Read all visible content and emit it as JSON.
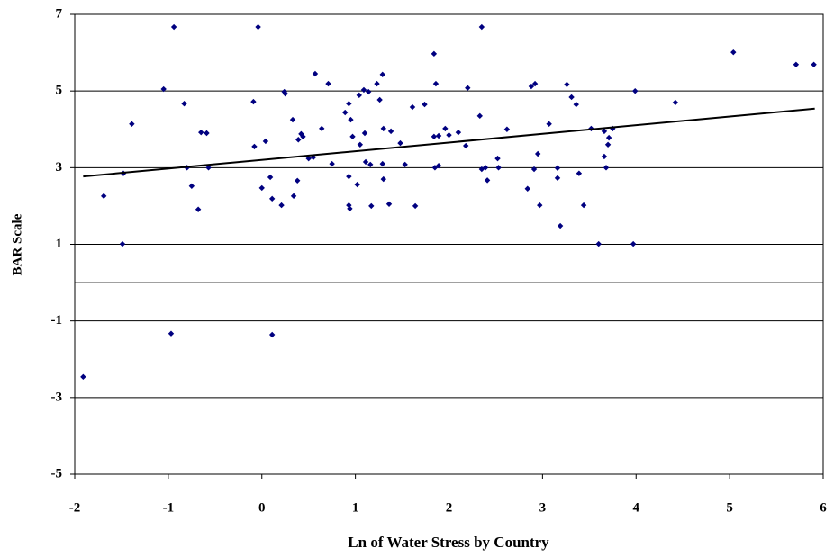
{
  "chart_data": {
    "type": "scatter",
    "xlabel": "Ln of Water Stress by Country",
    "ylabel": "BAR Scale",
    "color": "#000080",
    "grid": true,
    "xlim": [
      -2,
      6
    ],
    "xticks": [
      -2,
      -1,
      0,
      1,
      2,
      3,
      4,
      5,
      6
    ],
    "ylim": [
      -5,
      7
    ],
    "yticks": [
      -5,
      -3,
      -1,
      1,
      3,
      5,
      7
    ],
    "x": [
      -1.91,
      -1.69,
      -1.48,
      -1.49,
      -1.39,
      -1.05,
      -0.97,
      -0.94,
      -0.83,
      -0.8,
      -0.75,
      -0.68,
      -0.65,
      -0.59,
      -0.57,
      -0.09,
      -0.08,
      -0.04,
      0.0,
      0.04,
      0.09,
      0.11,
      0.11,
      0.21,
      0.24,
      0.25,
      0.33,
      0.34,
      0.38,
      0.39,
      0.42,
      0.44,
      0.5,
      0.55,
      0.57,
      0.64,
      0.71,
      0.75,
      0.89,
      0.93,
      0.93,
      0.93,
      0.94,
      0.95,
      0.97,
      1.02,
      1.04,
      1.05,
      1.09,
      1.1,
      1.11,
      1.14,
      1.16,
      1.17,
      1.23,
      1.26,
      1.29,
      1.29,
      1.3,
      1.3,
      1.36,
      1.38,
      1.48,
      1.53,
      1.61,
      1.64,
      1.74,
      1.84,
      1.84,
      1.85,
      1.86,
      1.89,
      1.89,
      1.96,
      2.0,
      2.1,
      2.18,
      2.2,
      2.33,
      2.35,
      2.35,
      2.39,
      2.41,
      2.52,
      2.53,
      2.62,
      2.84,
      2.88,
      2.92,
      2.91,
      2.95,
      2.97,
      3.07,
      3.16,
      3.16,
      3.19,
      3.26,
      3.31,
      3.36,
      3.39,
      3.44,
      3.52,
      3.6,
      3.66,
      3.66,
      3.68,
      3.7,
      3.71,
      3.75,
      3.97,
      3.99,
      4.42,
      5.04,
      5.71,
      5.9
    ],
    "values": [
      -2.46,
      2.26,
      2.85,
      1.01,
      4.14,
      5.05,
      -1.33,
      6.67,
      4.67,
      3.0,
      2.52,
      1.91,
      3.92,
      3.9,
      3.0,
      4.72,
      3.55,
      6.67,
      2.47,
      3.69,
      2.75,
      -1.36,
      2.19,
      2.02,
      4.98,
      4.93,
      4.25,
      2.26,
      2.66,
      3.73,
      3.88,
      3.81,
      3.24,
      3.27,
      5.45,
      4.02,
      5.19,
      3.1,
      4.44,
      2.77,
      4.67,
      2.02,
      1.93,
      4.25,
      3.81,
      2.56,
      4.89,
      3.6,
      5.03,
      3.9,
      3.15,
      4.98,
      3.08,
      2.0,
      5.19,
      4.77,
      5.43,
      3.1,
      4.02,
      2.7,
      2.05,
      3.95,
      3.64,
      3.08,
      4.58,
      2.0,
      4.65,
      5.97,
      3.81,
      3.0,
      5.19,
      3.83,
      3.05,
      4.02,
      3.85,
      3.92,
      3.57,
      5.08,
      4.35,
      6.67,
      2.96,
      3.0,
      2.67,
      3.24,
      3.0,
      4.0,
      2.45,
      5.12,
      5.19,
      2.96,
      3.36,
      2.02,
      4.14,
      2.99,
      2.73,
      1.48,
      5.17,
      4.84,
      4.65,
      2.85,
      2.02,
      4.02,
      1.01,
      3.95,
      3.29,
      3.0,
      3.6,
      3.78,
      4.02,
      1.01,
      5.0,
      4.7,
      6.01,
      5.69,
      5.69
    ],
    "trendline": {
      "color": "#000000",
      "x": [
        -1.91,
        5.91
      ],
      "values": [
        2.77,
        4.54
      ]
    }
  }
}
